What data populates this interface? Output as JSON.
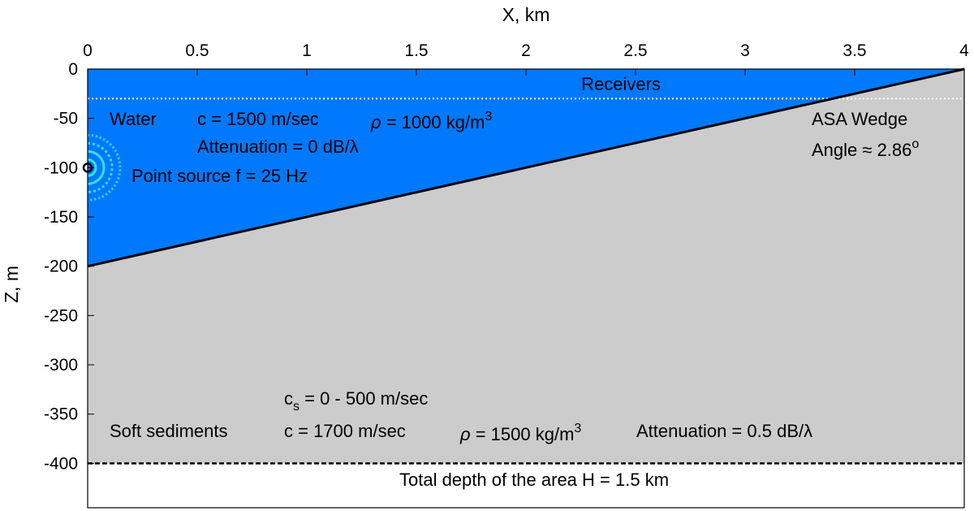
{
  "axes": {
    "x_label": "X, km",
    "y_label": "Z, m",
    "x_ticks": [
      {
        "value": 0,
        "label": "0"
      },
      {
        "value": 0.5,
        "label": "0.5"
      },
      {
        "value": 1,
        "label": "1"
      },
      {
        "value": 1.5,
        "label": "1.5"
      },
      {
        "value": 2,
        "label": "2"
      },
      {
        "value": 2.5,
        "label": "2.5"
      },
      {
        "value": 3,
        "label": "3"
      },
      {
        "value": 3.5,
        "label": "3.5"
      },
      {
        "value": 4,
        "label": "4"
      }
    ],
    "y_ticks": [
      {
        "value": 0,
        "label": "0"
      },
      {
        "value": -50,
        "label": "-50"
      },
      {
        "value": -100,
        "label": "-100"
      },
      {
        "value": -150,
        "label": "-150"
      },
      {
        "value": -200,
        "label": "-200"
      },
      {
        "value": -250,
        "label": "-250"
      },
      {
        "value": -300,
        "label": "-300"
      },
      {
        "value": -350,
        "label": "-350"
      },
      {
        "value": -400,
        "label": "-400"
      }
    ],
    "x_range": [
      0,
      4
    ],
    "y_range": [
      -445,
      0
    ]
  },
  "geometry": {
    "wedge_start": {
      "x": 0,
      "z": -200
    },
    "wedge_end": {
      "x": 4,
      "z": 0
    },
    "receivers_depth": -30,
    "sediment_bottom": -400,
    "source": {
      "x": 0,
      "z": -100
    }
  },
  "colors": {
    "water": "#0079FF",
    "sediment": "#CCCCCC",
    "wave_rings": "#33E0EE",
    "bottom_line": "#000000"
  },
  "labels": {
    "receivers": "Receivers",
    "water": "Water",
    "water_c": "c = 1500 m/sec",
    "water_rho_sym": "ρ",
    "water_rho_text": " = 1000 kg/m",
    "water_rho_exp": "3",
    "water_atten": "Attenuation = 0 dB/λ",
    "point_source": "Point source f = 25 Hz",
    "wedge_title": "ASA Wedge",
    "wedge_angle": "Angle ≈ 2.86",
    "wedge_angle_sup": "o",
    "cs_sym": "c",
    "cs_sub": "s",
    "cs_text": " = 0 - 500 m/sec",
    "sediments": "Soft sediments",
    "sed_c": "c = 1700 m/sec",
    "sed_rho_sym": "ρ",
    "sed_rho_text": " = 1500 kg/m",
    "sed_rho_exp": "3",
    "sed_atten": "Attenuation = 0.5 dB/λ",
    "total_depth": "Total depth of the area H = 1.5 km"
  }
}
